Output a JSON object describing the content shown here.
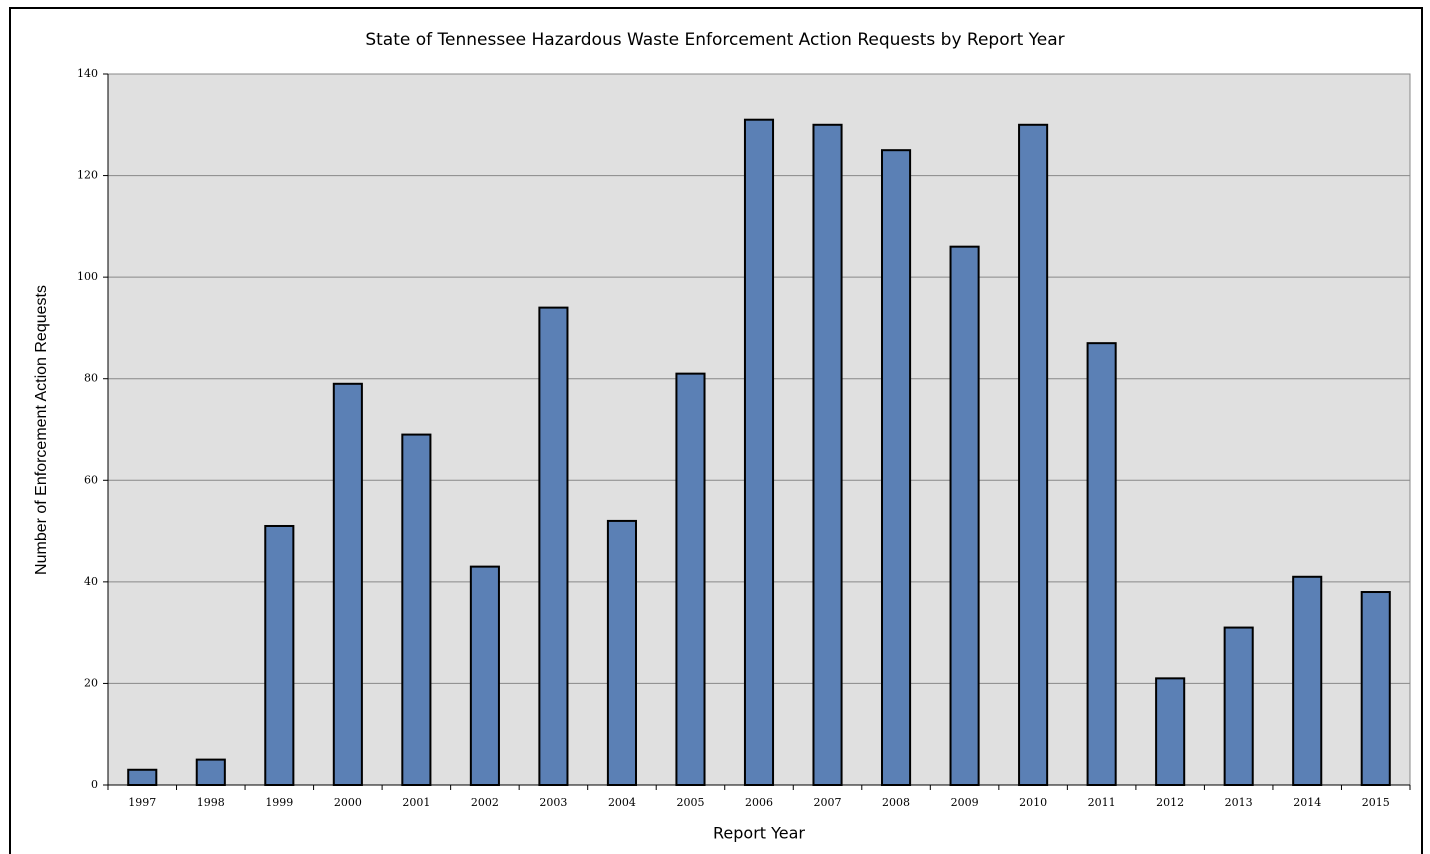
{
  "chart_data": {
    "type": "bar",
    "title": "State of Tennessee Hazardous Waste Enforcement Action Requests by Report Year",
    "x_label": "Report Year",
    "y_label": "Number of Enforcement Action Requests",
    "categories": [
      "1997",
      "1998",
      "1999",
      "2000",
      "2001",
      "2002",
      "2003",
      "2004",
      "2005",
      "2006",
      "2007",
      "2008",
      "2009",
      "2010",
      "2011",
      "2012",
      "2013",
      "2014",
      "2015"
    ],
    "values": [
      3,
      5,
      51,
      79,
      69,
      43,
      94,
      52,
      81,
      131,
      130,
      125,
      106,
      130,
      87,
      21,
      31,
      41,
      38
    ],
    "color": "#5b80b5",
    "ylim": [
      0,
      140
    ],
    "yticks": [
      0,
      20,
      40,
      60,
      80,
      100,
      120,
      140
    ],
    "grid": true
  }
}
